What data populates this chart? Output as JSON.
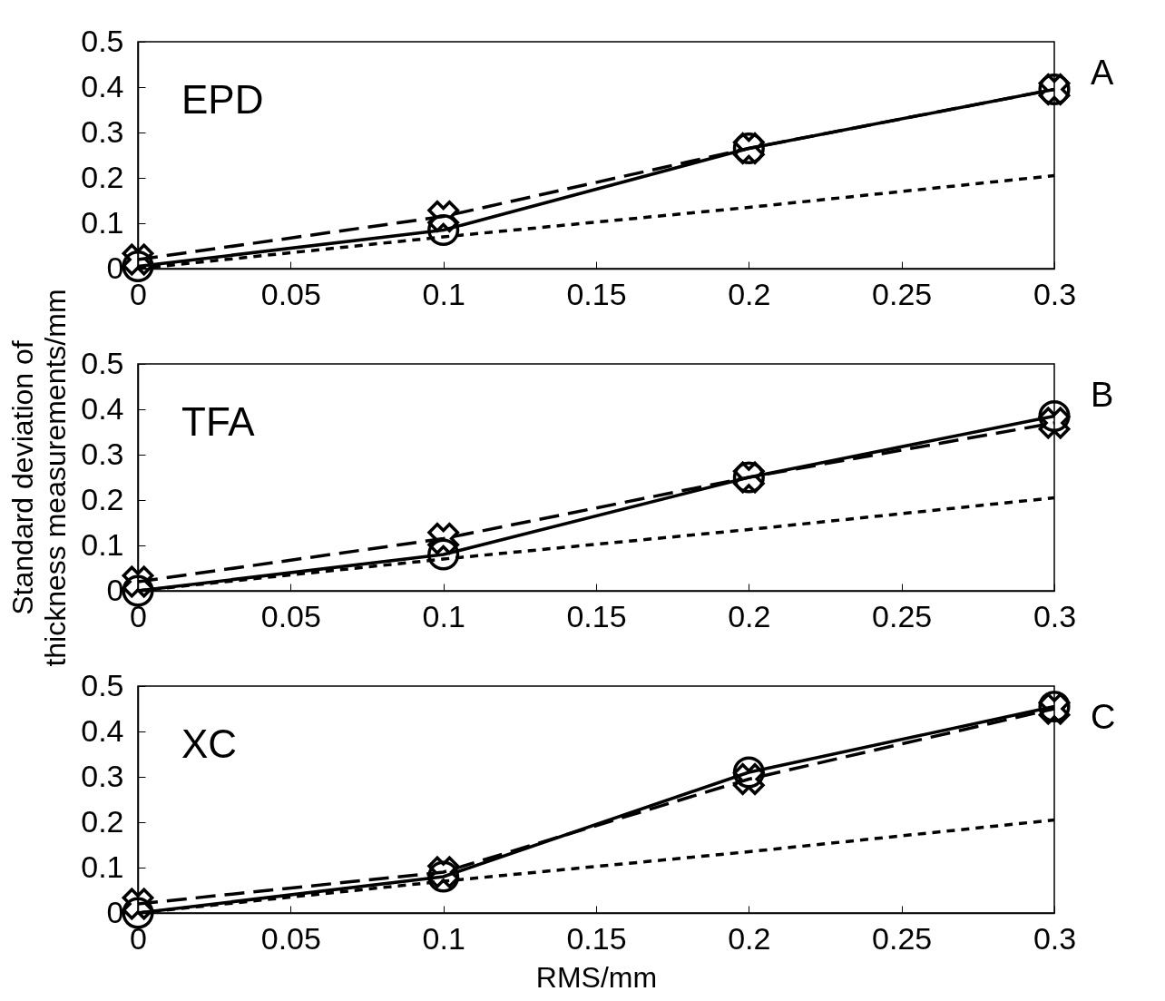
{
  "chart_data": [
    {
      "type": "line",
      "annotations": [
        "EPD",
        "A"
      ],
      "x": [
        0,
        0.1,
        0.2,
        0.3
      ],
      "xlim": [
        0,
        0.3
      ],
      "xticks": [
        0,
        0.05,
        0.1,
        0.15,
        0.2,
        0.25,
        0.3
      ],
      "ylim": [
        0,
        0.5
      ],
      "yticks": [
        0,
        0.1,
        0.2,
        0.3,
        0.4,
        0.5
      ],
      "series": [
        {
          "color": "#000000",
          "marker": "circle",
          "line_style": "solid",
          "values": [
            0.005,
            0.085,
            0.265,
            0.395
          ]
        },
        {
          "color": "#000000",
          "marker": "cross",
          "line_style": "dashed",
          "values": [
            0.02,
            0.115,
            0.265,
            0.395
          ]
        },
        {
          "color": "#000000",
          "marker": "none",
          "line_style": "dotted",
          "values": [
            0,
            0.07,
            0.135,
            0.205
          ]
        }
      ]
    },
    {
      "type": "line",
      "annotations": [
        "TFA",
        "B"
      ],
      "ylabel": "Standard deviation of\nthickness measurements/mm",
      "x": [
        0,
        0.1,
        0.2,
        0.3
      ],
      "xlim": [
        0,
        0.3
      ],
      "xticks": [
        0,
        0.05,
        0.1,
        0.15,
        0.2,
        0.25,
        0.3
      ],
      "ylim": [
        0,
        0.5
      ],
      "yticks": [
        0,
        0.1,
        0.2,
        0.3,
        0.4,
        0.5
      ],
      "series": [
        {
          "color": "#000000",
          "marker": "circle",
          "line_style": "solid",
          "values": [
            0,
            0.08,
            0.25,
            0.385
          ]
        },
        {
          "color": "#000000",
          "marker": "cross",
          "line_style": "dashed",
          "values": [
            0.02,
            0.115,
            0.25,
            0.37
          ]
        },
        {
          "color": "#000000",
          "marker": "none",
          "line_style": "dotted",
          "values": [
            0,
            0.07,
            0.135,
            0.205
          ]
        }
      ]
    },
    {
      "type": "line",
      "annotations": [
        "XC",
        "C"
      ],
      "xlabel": "RMS/mm",
      "x": [
        0,
        0.1,
        0.2,
        0.3
      ],
      "xlim": [
        0,
        0.3
      ],
      "xticks": [
        0,
        0.05,
        0.1,
        0.15,
        0.2,
        0.25,
        0.3
      ],
      "ylim": [
        0,
        0.5
      ],
      "yticks": [
        0,
        0.1,
        0.2,
        0.3,
        0.4,
        0.5
      ],
      "series": [
        {
          "color": "#000000",
          "marker": "circle",
          "line_style": "solid",
          "values": [
            0,
            0.08,
            0.31,
            0.455
          ]
        },
        {
          "color": "#000000",
          "marker": "cross",
          "line_style": "dashed",
          "values": [
            0.02,
            0.09,
            0.295,
            0.45
          ]
        },
        {
          "color": "#000000",
          "marker": "none",
          "line_style": "dotted",
          "values": [
            0,
            0.07,
            0.135,
            0.205
          ]
        }
      ]
    }
  ]
}
